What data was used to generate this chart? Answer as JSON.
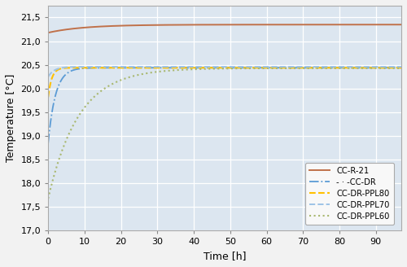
{
  "xlabel": "Time [h]",
  "ylabel": "Temperature [°C]",
  "xlim": [
    0,
    97
  ],
  "ylim": [
    17,
    21.75
  ],
  "yticks": [
    17,
    17.5,
    18,
    18.5,
    19,
    19.5,
    20,
    20.5,
    21,
    21.5
  ],
  "xticks": [
    0,
    10,
    20,
    30,
    40,
    50,
    60,
    70,
    80,
    90
  ],
  "bg_color": "#dce6f0",
  "fig_color": "#f2f2f2",
  "series": [
    {
      "label": "CC-R-21",
      "color": "#c0714a",
      "linestyle": "solid",
      "linewidth": 1.4,
      "y_start": 21.18,
      "y_end": 21.35,
      "rate": 0.1
    },
    {
      "label": "-·-CC-DR",
      "color": "#5b9bd5",
      "linestyle": "dashdot",
      "linewidth": 1.3,
      "y_start": 18.85,
      "y_end": 20.44,
      "rate": 0.5
    },
    {
      "label": "CC-DR-PPL80",
      "color": "#ffc000",
      "linestyle": "dashed",
      "linewidth": 1.5,
      "y_start": 19.82,
      "y_end": 20.44,
      "rate": 1.0
    },
    {
      "label": "CC-DR-PPL70",
      "color": "#9dc3e6",
      "linestyle": "dashed",
      "linewidth": 1.4,
      "y_start": 20.25,
      "y_end": 20.46,
      "rate": 0.6
    },
    {
      "label": "CC-DR-PPL60",
      "color": "#a9b870",
      "linestyle": "dotted",
      "linewidth": 1.5,
      "y_start": 17.68,
      "y_end": 20.43,
      "rate": 0.12
    }
  ]
}
